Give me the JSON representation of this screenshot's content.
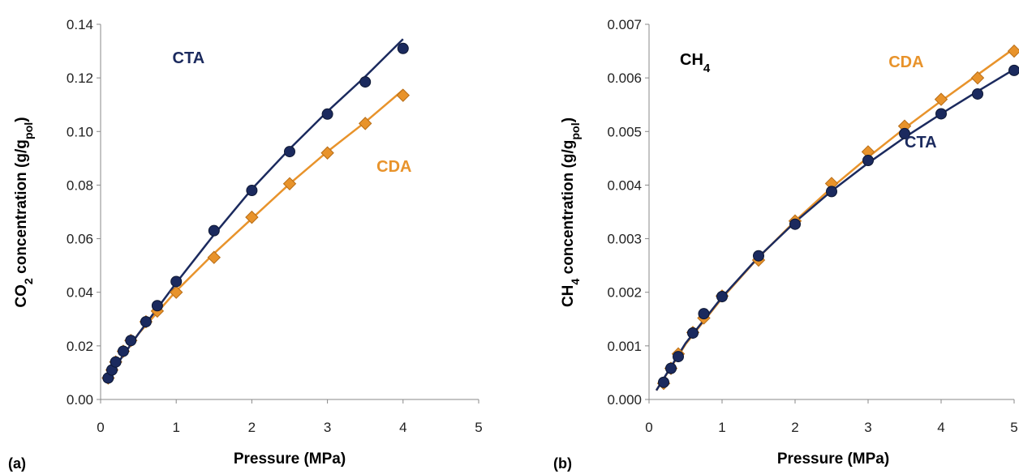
{
  "chart_data": [
    {
      "type": "scatter",
      "panel_label": "(a)",
      "title": "",
      "xlabel": "Pressure (MPa)",
      "ylabel": {
        "prefix": "CO",
        "sub": "2",
        "mid": " concentration (g/g",
        "sub2": "pol",
        "suffix": ")"
      },
      "xlim": [
        0,
        5
      ],
      "ylim": [
        0,
        0.14
      ],
      "xticks": [
        0,
        1,
        2,
        3,
        4,
        5
      ],
      "xtick_labels": [
        "0",
        "1",
        "2",
        "3",
        "4",
        "5"
      ],
      "yticks": [
        0,
        0.02,
        0.04,
        0.06,
        0.08,
        0.1,
        0.12,
        0.14
      ],
      "ytick_labels": [
        "0.00",
        "0.02",
        "0.04",
        "0.06",
        "0.08",
        "0.10",
        "0.12",
        "0.14"
      ],
      "grid": false,
      "series": [
        {
          "name": "CDA",
          "marker": "diamond",
          "color": "#E8932B",
          "x": [
            0.1,
            0.15,
            0.2,
            0.3,
            0.4,
            0.6,
            0.75,
            1.0,
            1.5,
            2.0,
            2.5,
            3.0,
            3.5,
            4.0
          ],
          "y": [
            0.008,
            0.011,
            0.014,
            0.018,
            0.022,
            0.029,
            0.033,
            0.04,
            0.053,
            0.068,
            0.0805,
            0.092,
            0.103,
            0.1135
          ],
          "fit_x": [
            0.05,
            0.5,
            1,
            1.5,
            2,
            2.5,
            3,
            3.5,
            4
          ],
          "fit_y": [
            0.0065,
            0.0245,
            0.0405,
            0.0545,
            0.0675,
            0.0805,
            0.0925,
            0.1035,
            0.1155
          ]
        },
        {
          "name": "CTA",
          "marker": "circle",
          "color": "#1B2A5E",
          "x": [
            0.1,
            0.15,
            0.2,
            0.3,
            0.4,
            0.6,
            0.75,
            1.0,
            1.5,
            2.0,
            2.5,
            3.0,
            3.5,
            4.0
          ],
          "y": [
            0.008,
            0.011,
            0.014,
            0.018,
            0.022,
            0.029,
            0.035,
            0.044,
            0.063,
            0.078,
            0.0925,
            0.1065,
            0.1185,
            0.131
          ],
          "fit_x": [
            0.05,
            0.5,
            1,
            1.5,
            2,
            2.5,
            3,
            3.5,
            4
          ],
          "fit_y": [
            0.0065,
            0.0245,
            0.0435,
            0.0615,
            0.0785,
            0.0935,
            0.1075,
            0.1205,
            0.1345
          ]
        }
      ],
      "labels": [
        {
          "text": "CTA",
          "x": 0.95,
          "y": 0.1255,
          "color": "#1B2A5E"
        },
        {
          "text": "CDA",
          "x": 3.65,
          "y": 0.085,
          "color": "#E8932B"
        }
      ]
    },
    {
      "type": "scatter",
      "panel_label": "(b)",
      "title": {
        "prefix": "CH",
        "sub": "4"
      },
      "xlabel": "Pressure (MPa)",
      "ylabel": {
        "prefix": "CH",
        "sub": "4",
        "mid": " concentration (g/g",
        "sub2": "pol",
        "suffix": ")"
      },
      "xlim": [
        0,
        5
      ],
      "ylim": [
        0,
        0.007
      ],
      "xticks": [
        0,
        1,
        2,
        3,
        4,
        5
      ],
      "xtick_labels": [
        "0",
        "1",
        "2",
        "3",
        "4",
        "5"
      ],
      "yticks": [
        0,
        0.001,
        0.002,
        0.003,
        0.004,
        0.005,
        0.006,
        0.007
      ],
      "ytick_labels": [
        "0.000",
        "0.001",
        "0.002",
        "0.003",
        "0.004",
        "0.005",
        "0.006",
        "0.007"
      ],
      "grid": false,
      "series": [
        {
          "name": "CDA",
          "marker": "diamond",
          "color": "#E8932B",
          "x": [
            0.2,
            0.3,
            0.4,
            0.6,
            0.75,
            1.0,
            1.5,
            2.0,
            2.5,
            3.0,
            3.5,
            4.0,
            4.5,
            5.0
          ],
          "y": [
            0.0003,
            0.00058,
            0.00085,
            0.00125,
            0.00152,
            0.00193,
            0.0026,
            0.00333,
            0.00403,
            0.00462,
            0.0051,
            0.0056,
            0.006,
            0.0065
          ],
          "fit_x": [
            0.1,
            0.5,
            1,
            1.5,
            2,
            2.5,
            3,
            3.5,
            4,
            4.5,
            5
          ],
          "fit_y": [
            0.00017,
            0.00103,
            0.00189,
            0.00265,
            0.00333,
            0.00395,
            0.00452,
            0.00506,
            0.00557,
            0.00606,
            0.00655
          ]
        },
        {
          "name": "CTA",
          "marker": "circle",
          "color": "#1B2A5E",
          "x": [
            0.2,
            0.3,
            0.4,
            0.6,
            0.75,
            1.0,
            1.5,
            2.0,
            2.5,
            3.0,
            3.5,
            4.0,
            4.5,
            5.0
          ],
          "y": [
            0.00032,
            0.00058,
            0.0008,
            0.00124,
            0.0016,
            0.00192,
            0.00268,
            0.00327,
            0.00388,
            0.00446,
            0.00496,
            0.00533,
            0.0057,
            0.00614
          ],
          "fit_x": [
            0.1,
            0.5,
            1,
            1.5,
            2,
            2.5,
            3,
            3.5,
            4,
            4.5,
            5
          ],
          "fit_y": [
            0.00017,
            0.00105,
            0.00191,
            0.00266,
            0.00331,
            0.00389,
            0.00441,
            0.00489,
            0.00533,
            0.00575,
            0.00616
          ]
        }
      ],
      "labels": [
        {
          "text": "CDA",
          "x": 3.28,
          "y": 0.0062,
          "color": "#E8932B"
        },
        {
          "text": "CTA",
          "x": 3.5,
          "y": 0.0047,
          "color": "#1B2A5E"
        }
      ]
    }
  ]
}
